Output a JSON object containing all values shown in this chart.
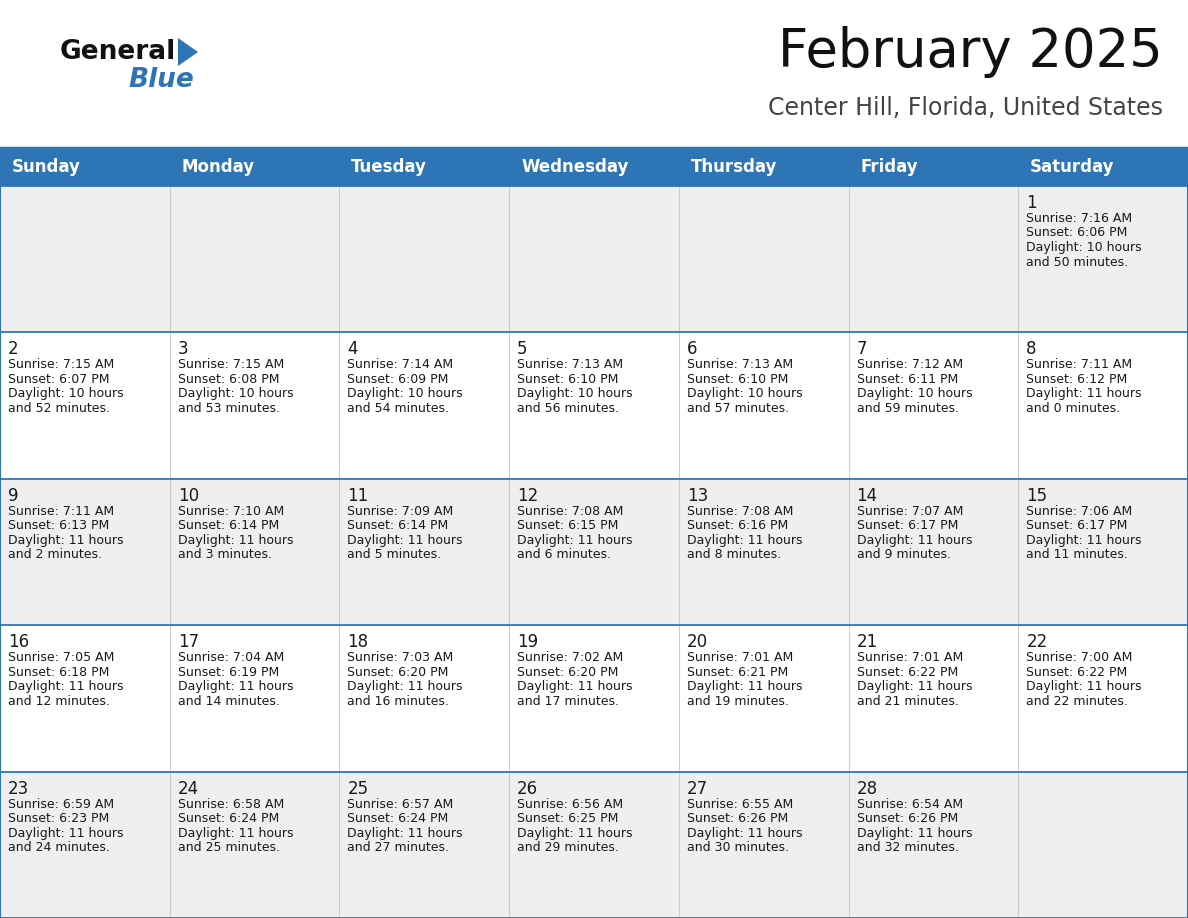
{
  "title": "February 2025",
  "subtitle": "Center Hill, Florida, United States",
  "header_bg": "#2e75b6",
  "header_text_color": "#ffffff",
  "row_bg_even": "#efefef",
  "row_bg_odd": "#ffffff",
  "cell_border_color": "#2e75b6",
  "text_color": "#1a1a1a",
  "day_headers": [
    "Sunday",
    "Monday",
    "Tuesday",
    "Wednesday",
    "Thursday",
    "Friday",
    "Saturday"
  ],
  "days": [
    {
      "day": 1,
      "col": 6,
      "row": 0,
      "sunrise": "7:16 AM",
      "sunset": "6:06 PM",
      "daylight_h": "10 hours",
      "daylight_m": "50 minutes."
    },
    {
      "day": 2,
      "col": 0,
      "row": 1,
      "sunrise": "7:15 AM",
      "sunset": "6:07 PM",
      "daylight_h": "10 hours",
      "daylight_m": "52 minutes."
    },
    {
      "day": 3,
      "col": 1,
      "row": 1,
      "sunrise": "7:15 AM",
      "sunset": "6:08 PM",
      "daylight_h": "10 hours",
      "daylight_m": "53 minutes."
    },
    {
      "day": 4,
      "col": 2,
      "row": 1,
      "sunrise": "7:14 AM",
      "sunset": "6:09 PM",
      "daylight_h": "10 hours",
      "daylight_m": "54 minutes."
    },
    {
      "day": 5,
      "col": 3,
      "row": 1,
      "sunrise": "7:13 AM",
      "sunset": "6:10 PM",
      "daylight_h": "10 hours",
      "daylight_m": "56 minutes."
    },
    {
      "day": 6,
      "col": 4,
      "row": 1,
      "sunrise": "7:13 AM",
      "sunset": "6:10 PM",
      "daylight_h": "10 hours",
      "daylight_m": "57 minutes."
    },
    {
      "day": 7,
      "col": 5,
      "row": 1,
      "sunrise": "7:12 AM",
      "sunset": "6:11 PM",
      "daylight_h": "10 hours",
      "daylight_m": "59 minutes."
    },
    {
      "day": 8,
      "col": 6,
      "row": 1,
      "sunrise": "7:11 AM",
      "sunset": "6:12 PM",
      "daylight_h": "11 hours",
      "daylight_m": "0 minutes."
    },
    {
      "day": 9,
      "col": 0,
      "row": 2,
      "sunrise": "7:11 AM",
      "sunset": "6:13 PM",
      "daylight_h": "11 hours",
      "daylight_m": "2 minutes."
    },
    {
      "day": 10,
      "col": 1,
      "row": 2,
      "sunrise": "7:10 AM",
      "sunset": "6:14 PM",
      "daylight_h": "11 hours",
      "daylight_m": "3 minutes."
    },
    {
      "day": 11,
      "col": 2,
      "row": 2,
      "sunrise": "7:09 AM",
      "sunset": "6:14 PM",
      "daylight_h": "11 hours",
      "daylight_m": "5 minutes."
    },
    {
      "day": 12,
      "col": 3,
      "row": 2,
      "sunrise": "7:08 AM",
      "sunset": "6:15 PM",
      "daylight_h": "11 hours",
      "daylight_m": "6 minutes."
    },
    {
      "day": 13,
      "col": 4,
      "row": 2,
      "sunrise": "7:08 AM",
      "sunset": "6:16 PM",
      "daylight_h": "11 hours",
      "daylight_m": "8 minutes."
    },
    {
      "day": 14,
      "col": 5,
      "row": 2,
      "sunrise": "7:07 AM",
      "sunset": "6:17 PM",
      "daylight_h": "11 hours",
      "daylight_m": "9 minutes."
    },
    {
      "day": 15,
      "col": 6,
      "row": 2,
      "sunrise": "7:06 AM",
      "sunset": "6:17 PM",
      "daylight_h": "11 hours",
      "daylight_m": "11 minutes."
    },
    {
      "day": 16,
      "col": 0,
      "row": 3,
      "sunrise": "7:05 AM",
      "sunset": "6:18 PM",
      "daylight_h": "11 hours",
      "daylight_m": "12 minutes."
    },
    {
      "day": 17,
      "col": 1,
      "row": 3,
      "sunrise": "7:04 AM",
      "sunset": "6:19 PM",
      "daylight_h": "11 hours",
      "daylight_m": "14 minutes."
    },
    {
      "day": 18,
      "col": 2,
      "row": 3,
      "sunrise": "7:03 AM",
      "sunset": "6:20 PM",
      "daylight_h": "11 hours",
      "daylight_m": "16 minutes."
    },
    {
      "day": 19,
      "col": 3,
      "row": 3,
      "sunrise": "7:02 AM",
      "sunset": "6:20 PM",
      "daylight_h": "11 hours",
      "daylight_m": "17 minutes."
    },
    {
      "day": 20,
      "col": 4,
      "row": 3,
      "sunrise": "7:01 AM",
      "sunset": "6:21 PM",
      "daylight_h": "11 hours",
      "daylight_m": "19 minutes."
    },
    {
      "day": 21,
      "col": 5,
      "row": 3,
      "sunrise": "7:01 AM",
      "sunset": "6:22 PM",
      "daylight_h": "11 hours",
      "daylight_m": "21 minutes."
    },
    {
      "day": 22,
      "col": 6,
      "row": 3,
      "sunrise": "7:00 AM",
      "sunset": "6:22 PM",
      "daylight_h": "11 hours",
      "daylight_m": "22 minutes."
    },
    {
      "day": 23,
      "col": 0,
      "row": 4,
      "sunrise": "6:59 AM",
      "sunset": "6:23 PM",
      "daylight_h": "11 hours",
      "daylight_m": "24 minutes."
    },
    {
      "day": 24,
      "col": 1,
      "row": 4,
      "sunrise": "6:58 AM",
      "sunset": "6:24 PM",
      "daylight_h": "11 hours",
      "daylight_m": "25 minutes."
    },
    {
      "day": 25,
      "col": 2,
      "row": 4,
      "sunrise": "6:57 AM",
      "sunset": "6:24 PM",
      "daylight_h": "11 hours",
      "daylight_m": "27 minutes."
    },
    {
      "day": 26,
      "col": 3,
      "row": 4,
      "sunrise": "6:56 AM",
      "sunset": "6:25 PM",
      "daylight_h": "11 hours",
      "daylight_m": "29 minutes."
    },
    {
      "day": 27,
      "col": 4,
      "row": 4,
      "sunrise": "6:55 AM",
      "sunset": "6:26 PM",
      "daylight_h": "11 hours",
      "daylight_m": "30 minutes."
    },
    {
      "day": 28,
      "col": 5,
      "row": 4,
      "sunrise": "6:54 AM",
      "sunset": "6:26 PM",
      "daylight_h": "11 hours",
      "daylight_m": "32 minutes."
    }
  ],
  "num_rows": 5,
  "title_fontsize": 38,
  "subtitle_fontsize": 17,
  "header_fontsize": 12,
  "day_num_fontsize": 12,
  "cell_text_fontsize": 9
}
